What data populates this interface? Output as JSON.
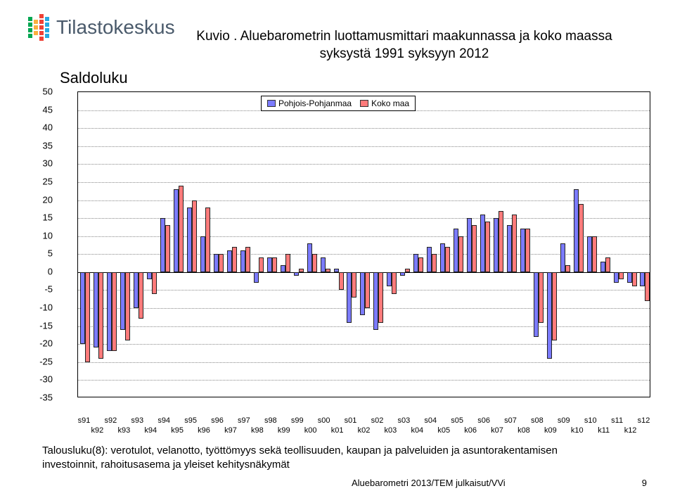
{
  "logo": {
    "brand": "Tilastokeskus",
    "colors": [
      "#00a651",
      "#fbb040",
      "#ef4136",
      "#27aae1"
    ]
  },
  "chart": {
    "title_line1": "Kuvio . Aluebarometrin luottamusmittari maakunnassa ja koko maassa",
    "title_line2": "syksystä 1991 syksyyn 2012",
    "y_axis_title": "Saldoluku",
    "type": "grouped-bar",
    "ylim_min": -35,
    "ylim_max": 50,
    "ytick_step": 5,
    "background": "#ffffff",
    "grid_color": "#888888",
    "legend": [
      {
        "label": "Pohjois-Pohjanmaa",
        "color": "#7b7bff"
      },
      {
        "label": "Koko maa",
        "color": "#ff7b7b"
      }
    ],
    "series": {
      "pp_color": "#7b7bff",
      "km_color": "#ff7b7b"
    },
    "x_labels_top": [
      "s91",
      "s92",
      "s93",
      "s94",
      "s95",
      "s96",
      "s97",
      "s98",
      "s99",
      "s00",
      "s01",
      "s02",
      "s03",
      "s04",
      "s05",
      "s06",
      "s07",
      "s08",
      "s09",
      "s10",
      "s11",
      "s12"
    ],
    "x_labels_bot": [
      "k92",
      "k93",
      "k94",
      "k95",
      "k96",
      "k97",
      "k98",
      "k99",
      "k00",
      "k01",
      "k02",
      "k03",
      "k04",
      "k05",
      "k06",
      "k07",
      "k08",
      "k09",
      "k10",
      "k11",
      "k12"
    ],
    "data": [
      {
        "pp": -20,
        "km": -25
      },
      {
        "pp": -21,
        "km": -24
      },
      {
        "pp": -22,
        "km": -22
      },
      {
        "pp": -16,
        "km": -19
      },
      {
        "pp": -10,
        "km": -13
      },
      {
        "pp": -2,
        "km": -6
      },
      {
        "pp": 15,
        "km": 13
      },
      {
        "pp": 23,
        "km": 24
      },
      {
        "pp": 18,
        "km": 20
      },
      {
        "pp": 10,
        "km": 18
      },
      {
        "pp": 5,
        "km": 5
      },
      {
        "pp": 6,
        "km": 7
      },
      {
        "pp": 6,
        "km": 7
      },
      {
        "pp": -3,
        "km": 4
      },
      {
        "pp": 4,
        "km": 4
      },
      {
        "pp": 2,
        "km": 5
      },
      {
        "pp": -1,
        "km": 1
      },
      {
        "pp": 8,
        "km": 5
      },
      {
        "pp": 4,
        "km": 1
      },
      {
        "pp": 1,
        "km": -5
      },
      {
        "pp": -14,
        "km": -7
      },
      {
        "pp": -12,
        "km": -10
      },
      {
        "pp": -16,
        "km": -14
      },
      {
        "pp": -4,
        "km": -6
      },
      {
        "pp": -1,
        "km": 1
      },
      {
        "pp": 5,
        "km": 4
      },
      {
        "pp": 7,
        "km": 5
      },
      {
        "pp": 8,
        "km": 7
      },
      {
        "pp": 12,
        "km": 10
      },
      {
        "pp": 15,
        "km": 13
      },
      {
        "pp": 16,
        "km": 14
      },
      {
        "pp": 15,
        "km": 17
      },
      {
        "pp": 13,
        "km": 16
      },
      {
        "pp": 12,
        "km": 12
      },
      {
        "pp": -18,
        "km": -14
      },
      {
        "pp": -24,
        "km": -19
      },
      {
        "pp": 8,
        "km": 2
      },
      {
        "pp": 23,
        "km": 19
      },
      {
        "pp": 10,
        "km": 10
      },
      {
        "pp": 3,
        "km": 4
      },
      {
        "pp": -3,
        "km": -2
      },
      {
        "pp": -3,
        "km": -4
      },
      {
        "pp": -4,
        "km": -8
      }
    ]
  },
  "caption": {
    "line1": "Talousluku(8): verotulot, velanotto, työttömyys sekä teollisuuden, kaupan ja palveluiden ja asuntorakentamisen",
    "line2": "investoinnit, rahoitusasema ja yleiset kehitysnäkymät"
  },
  "footer": {
    "source": "Aluebarometri 2013/TEM julkaisut/VVi",
    "page": "9"
  }
}
